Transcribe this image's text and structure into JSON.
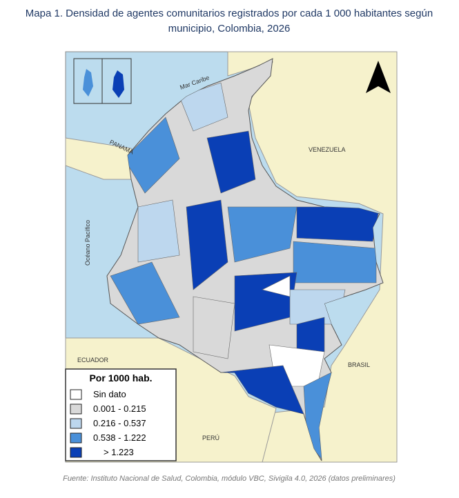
{
  "header": {
    "title_line1": "Mapa 1. Densidad de agentes comunitarios registrados por cada 1 000 habitantes según",
    "title_line2": "municipio, Colombia, 2026"
  },
  "map_labels": {
    "sea": "Mar Caribe",
    "panama": "PANAMÁ",
    "venezuela": "VENEZUELA",
    "pacific": "Océano Pacífico",
    "ecuador": "ECUADOR",
    "brasil": "BRASIL",
    "peru": "PERÚ"
  },
  "legend": {
    "title": "Por 1000 hab.",
    "items": [
      {
        "label": "Sin dato",
        "color": "#ffffff"
      },
      {
        "label": "0.001 - 0.215",
        "color": "#d9d9d9"
      },
      {
        "label": "0.216 - 0.537",
        "color": "#bdd7ee"
      },
      {
        "label": "0.538 - 1.222",
        "color": "#4a90d9"
      },
      {
        "label": "> 1.223",
        "color": "#0a3fb5"
      }
    ]
  },
  "source": "Fuente: Instituto Nacional de Salud, Colombia, módulo VBC, Sivigila 4.0, 2026 (datos preliminares)"
}
